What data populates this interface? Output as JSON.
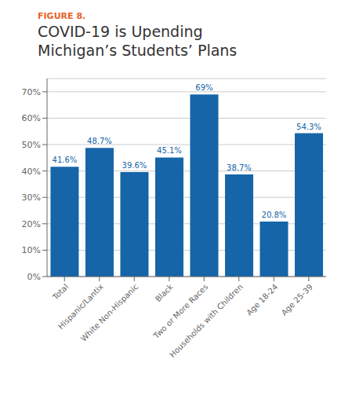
{
  "chart_data": {
    "type": "bar",
    "title": "COVID-19 is Upending\nMichigan’s Students’ Plans",
    "annotations": [
      {
        "text": "FIGURE 8.",
        "color": "#e8622a"
      }
    ],
    "categories": [
      "Total",
      "Hispanic/Lantix",
      "White Non-Hispanic",
      "Black",
      "Two or More Races",
      "Households with Children",
      "Age 18-24",
      "Age 25-39"
    ],
    "values": [
      41.6,
      48.7,
      39.6,
      45.1,
      69.0,
      38.7,
      20.8,
      54.3
    ],
    "value_labels": [
      "41.6%",
      "48.7%",
      "39.6%",
      "45.1%",
      "69%",
      "38.7%",
      "20.8%",
      "54.3%"
    ],
    "data_labels": true,
    "color": "#1565a8",
    "ylim": [
      0,
      75
    ],
    "yticks": [
      {
        "value": 0,
        "label": "0%"
      },
      {
        "value": 10,
        "label": "10%"
      },
      {
        "value": 20,
        "label": "20%"
      },
      {
        "value": 30,
        "label": "30%"
      },
      {
        "value": 40,
        "label": "40%"
      },
      {
        "value": 50,
        "label": "50%"
      },
      {
        "value": 60,
        "label": "60%"
      },
      {
        "value": 70,
        "label": "70%"
      }
    ],
    "grid": true
  }
}
